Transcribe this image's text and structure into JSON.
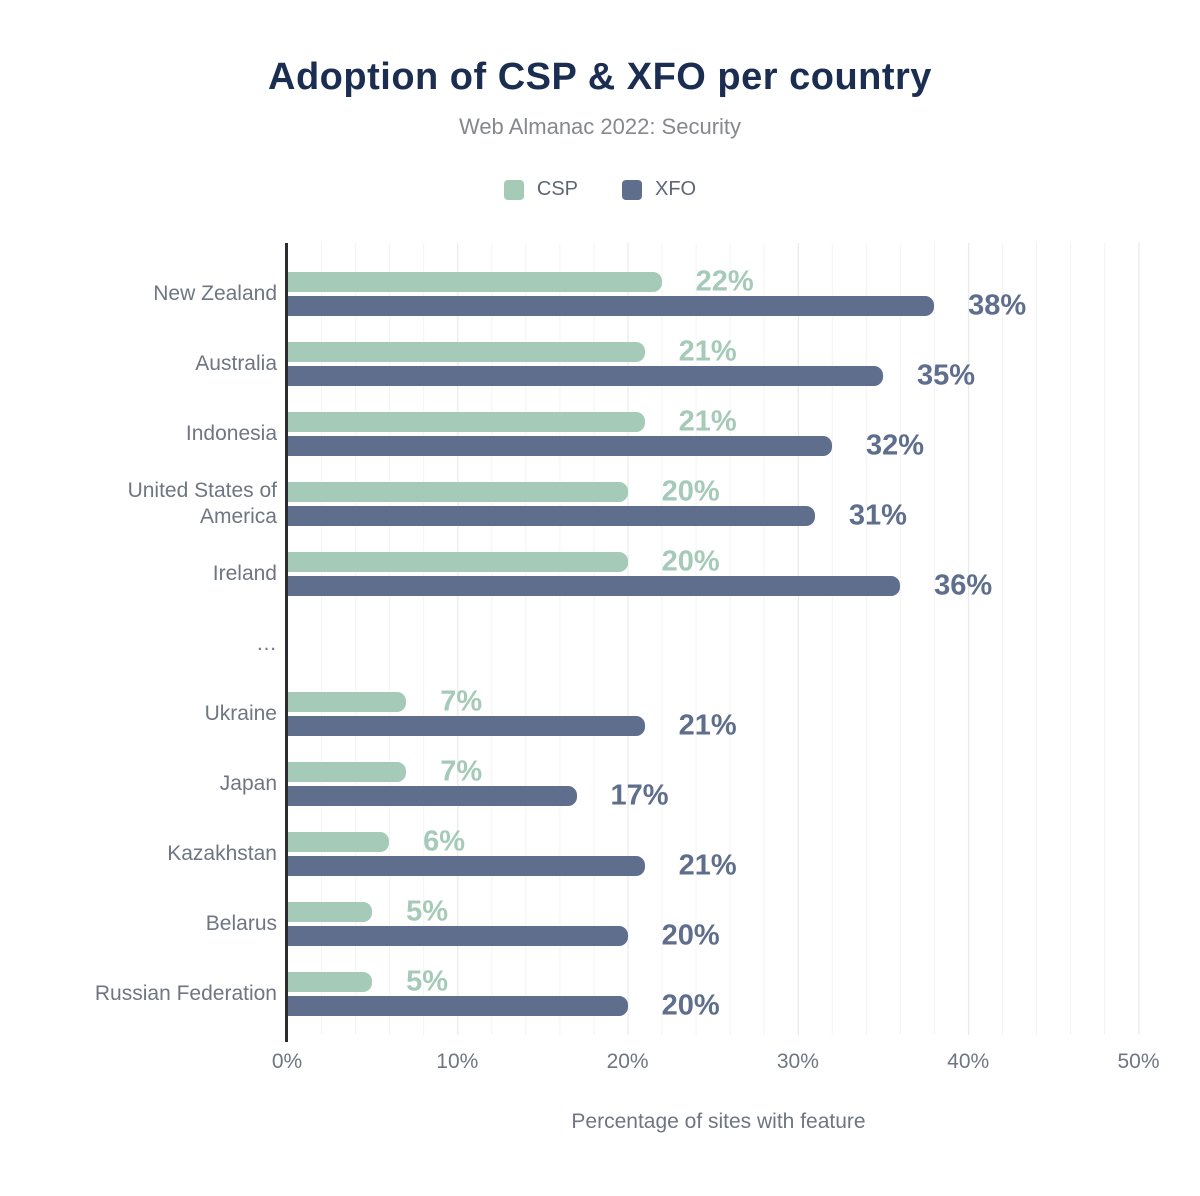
{
  "chart_data": {
    "type": "bar",
    "orientation": "horizontal",
    "title": "Adoption of CSP & XFO per country",
    "subtitle": "Web Almanac 2022: Security",
    "xlabel": "Percentage of sites with feature",
    "xlim": [
      0,
      50
    ],
    "xtick_labels": [
      "0%",
      "10%",
      "20%",
      "30%",
      "40%",
      "50%"
    ],
    "grid": "vertical minor lines every 2%, major every 10%",
    "legend_position": "top-center",
    "legend": [
      {
        "name": "CSP",
        "color": "#a5cab8"
      },
      {
        "name": "XFO",
        "color": "#5f6e8c"
      }
    ],
    "categories": [
      "New Zealand",
      "Australia",
      "Indonesia",
      "United States of America",
      "Ireland",
      "…",
      "Ukraine",
      "Japan",
      "Kazakhstan",
      "Belarus",
      "Russian Federation"
    ],
    "ellipsis_row_index": 5,
    "series": [
      {
        "name": "CSP",
        "color": "#a5cab8",
        "values": [
          22,
          21,
          21,
          20,
          20,
          null,
          7,
          7,
          6,
          5,
          5
        ],
        "labels": [
          "22%",
          "21%",
          "21%",
          "20%",
          "20%",
          null,
          "7%",
          "7%",
          "6%",
          "5%",
          "5%"
        ]
      },
      {
        "name": "XFO",
        "color": "#5f6e8c",
        "values": [
          38,
          35,
          32,
          31,
          36,
          null,
          21,
          17,
          21,
          20,
          20
        ],
        "labels": [
          "38%",
          "35%",
          "32%",
          "31%",
          "36%",
          null,
          "21%",
          "17%",
          "21%",
          "20%",
          "20%"
        ]
      }
    ],
    "theme": {
      "title_color": "#1b2e51",
      "subtitle_color": "#85888c",
      "axis_text_color": "#6f7682",
      "axis_line_color": "#2b2b30",
      "background": "#ffffff"
    }
  }
}
